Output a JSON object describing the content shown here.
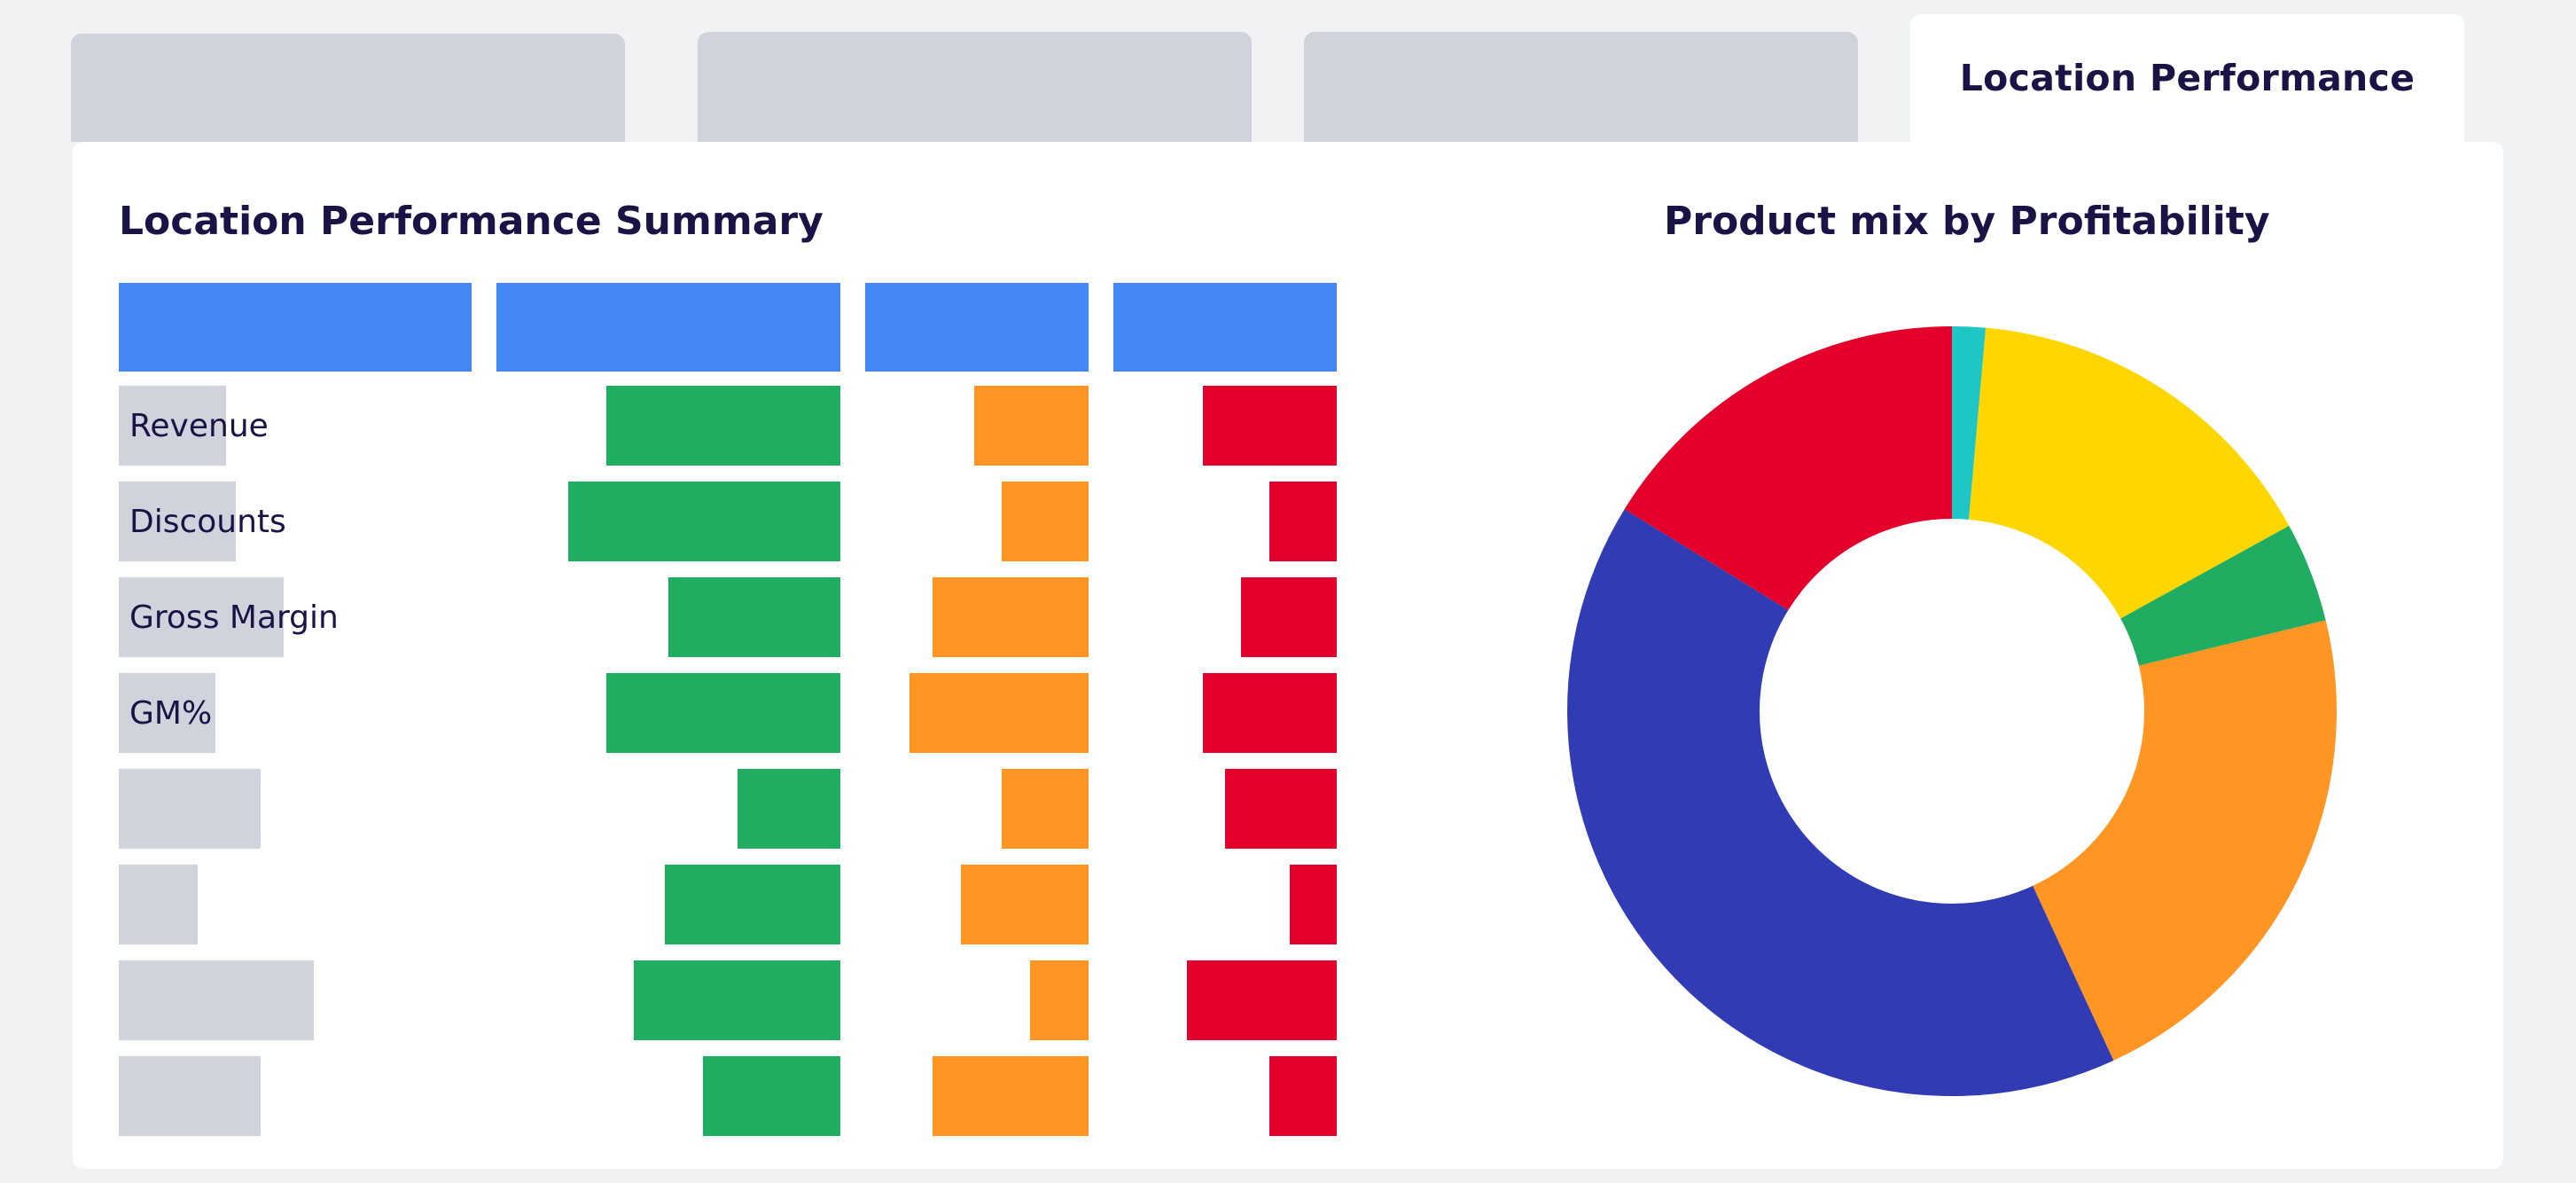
{
  "tabs": [
    {
      "label": "",
      "active": false
    },
    {
      "label": "",
      "active": false
    },
    {
      "label": "",
      "active": false
    },
    {
      "label": "Location Performance",
      "active": true
    }
  ],
  "colors": {
    "header": "#4388f5",
    "green": "#20ad61",
    "orange": "#ff9523",
    "red": "#e3002b",
    "placeholder": "#d0d3dc",
    "text": "#1a1446"
  },
  "chart_data": [
    {
      "type": "table",
      "title": "Location Performance Summary",
      "columns": [
        "",
        "",
        "",
        ""
      ],
      "rows": [
        {
          "label": "Revenue",
          "values": [
            0.68,
            0.51,
            0.6
          ]
        },
        {
          "label": "Discounts",
          "values": [
            0.79,
            0.39,
            0.3
          ]
        },
        {
          "label": "Gross Margin",
          "values": [
            0.5,
            0.7,
            0.43
          ]
        },
        {
          "label": "GM%",
          "values": [
            0.68,
            0.8,
            0.6
          ]
        },
        {
          "label": "",
          "values": [
            0.3,
            0.39,
            0.5
          ]
        },
        {
          "label": "",
          "values": [
            0.51,
            0.57,
            0.21
          ]
        },
        {
          "label": "",
          "values": [
            0.6,
            0.26,
            0.67
          ]
        },
        {
          "label": "",
          "values": [
            0.4,
            0.7,
            0.3
          ]
        }
      ],
      "label_widths": [
        0.85,
        0.93,
        1.31,
        0.77,
        1.13,
        0.63,
        1.55,
        1.13
      ],
      "column_colors": [
        "green",
        "orange",
        "red"
      ]
    },
    {
      "type": "pie",
      "title": "Product mix by Profitability",
      "hole": 0.5,
      "slices": [
        {
          "value": 1.4,
          "color": "#1ec6c6"
        },
        {
          "value": 15.6,
          "color": "#ffd600"
        },
        {
          "value": 4.2,
          "color": "#20ad61"
        },
        {
          "value": 21.9,
          "color": "#ff9523"
        },
        {
          "value": 40.7,
          "color": "#313bb4"
        },
        {
          "value": 16.2,
          "color": "#e3002b"
        }
      ]
    }
  ]
}
